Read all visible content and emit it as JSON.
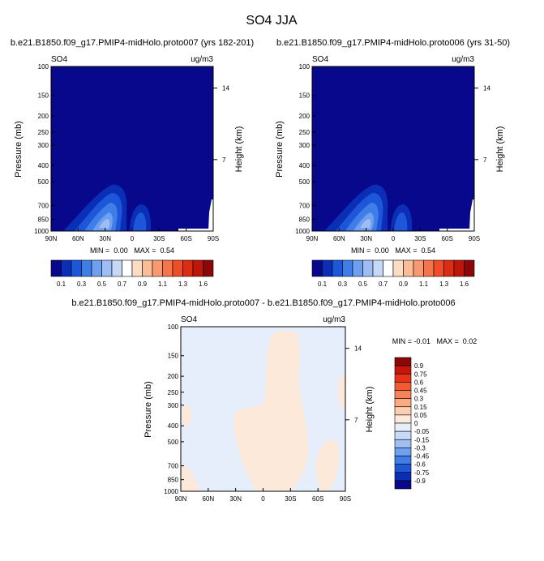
{
  "figure_title": "SO4 JJA",
  "chart_data": [
    {
      "type": "heatmap",
      "title": "b.e21.B1850.f09_g17.PMIP4-midHolo.proto007 (yrs 182-201)",
      "left_label": "SO4",
      "right_label": "ug/m3",
      "ylabel": "Pressure (mb)",
      "ylabel_right": "Height (km)",
      "x_ticks": [
        "90N",
        "60N",
        "30N",
        "0",
        "30S",
        "60S",
        "90S"
      ],
      "y_ticks": [
        "100",
        "150",
        "200",
        "250",
        "300",
        "400",
        "500",
        "700",
        "850",
        "1000"
      ],
      "height_ticks": [
        "14",
        "7"
      ],
      "ylim": [
        1000,
        100
      ],
      "xlim": [
        "90N",
        "90S"
      ],
      "stats": "MIN =  0.00   MAX =  0.54",
      "colorbar_labels": [
        "0.1",
        "0.3",
        "0.5",
        "0.7",
        "0.9",
        "1.1",
        "1.3",
        "1.6"
      ],
      "colorbar_colors": [
        "#08088c",
        "#0a2fb6",
        "#1d56d8",
        "#3f7ee8",
        "#6e9ff0",
        "#9dbdf4",
        "#c5d8f8",
        "#ffffff",
        "#fddcc4",
        "#fbbd97",
        "#f89a6f",
        "#f5744a",
        "#ef4d29",
        "#db2c14",
        "#bd170b",
        "#8c0707"
      ]
    },
    {
      "type": "heatmap",
      "title": "b.e21.B1850.f09_g17.PMIP4-midHolo.proto006 (yrs 31-50)",
      "left_label": "SO4",
      "right_label": "ug/m3",
      "ylabel": "Pressure (mb)",
      "ylabel_right": "Height (km)",
      "x_ticks": [
        "90N",
        "60N",
        "30N",
        "0",
        "30S",
        "60S",
        "90S"
      ],
      "y_ticks": [
        "100",
        "150",
        "200",
        "250",
        "300",
        "400",
        "500",
        "700",
        "850",
        "1000"
      ],
      "height_ticks": [
        "14",
        "7"
      ],
      "ylim": [
        1000,
        100
      ],
      "xlim": [
        "90N",
        "90S"
      ],
      "stats": "MIN =  0.00   MAX =  0.54",
      "colorbar_labels": [
        "0.1",
        "0.3",
        "0.5",
        "0.7",
        "0.9",
        "1.1",
        "1.3",
        "1.6"
      ],
      "colorbar_colors": [
        "#08088c",
        "#0a2fb6",
        "#1d56d8",
        "#3f7ee8",
        "#6e9ff0",
        "#9dbdf4",
        "#c5d8f8",
        "#ffffff",
        "#fddcc4",
        "#fbbd97",
        "#f89a6f",
        "#f5744a",
        "#ef4d29",
        "#db2c14",
        "#bd170b",
        "#8c0707"
      ]
    },
    {
      "type": "heatmap",
      "title": "b.e21.B1850.f09_g17.PMIP4-midHolo.proto007 - b.e21.B1850.f09_g17.PMIP4-midHolo.proto006",
      "left_label": "SO4",
      "right_label": "ug/m3",
      "ylabel": "Pressure (mb)",
      "ylabel_right": "Height (km)",
      "x_ticks": [
        "90N",
        "60N",
        "30N",
        "0",
        "30S",
        "60S",
        "90S"
      ],
      "y_ticks": [
        "100",
        "150",
        "200",
        "250",
        "300",
        "400",
        "500",
        "700",
        "850",
        "1000"
      ],
      "height_ticks": [
        "14",
        "7"
      ],
      "ylim": [
        1000,
        100
      ],
      "xlim": [
        "90N",
        "90S"
      ],
      "stats": "MIN = -0.01   MAX =  0.02",
      "colorbar_labels": [
        "0.9",
        "0.75",
        "0.6",
        "0.45",
        "0.3",
        "0.15",
        "0.05",
        "0",
        "-0.05",
        "-0.15",
        "-0.3",
        "-0.45",
        "-0.6",
        "-0.75",
        "-0.9"
      ],
      "colorbar_colors": [
        "#8c0707",
        "#c8150b",
        "#e5331a",
        "#f25a33",
        "#f7825a",
        "#fbaa84",
        "#fdcfb0",
        "#fde9d9",
        "#e6eefc",
        "#c7daf8",
        "#9fbff3",
        "#6e9ff0",
        "#3f7ee8",
        "#1d56d8",
        "#0a2fb6",
        "#08088c"
      ]
    }
  ]
}
